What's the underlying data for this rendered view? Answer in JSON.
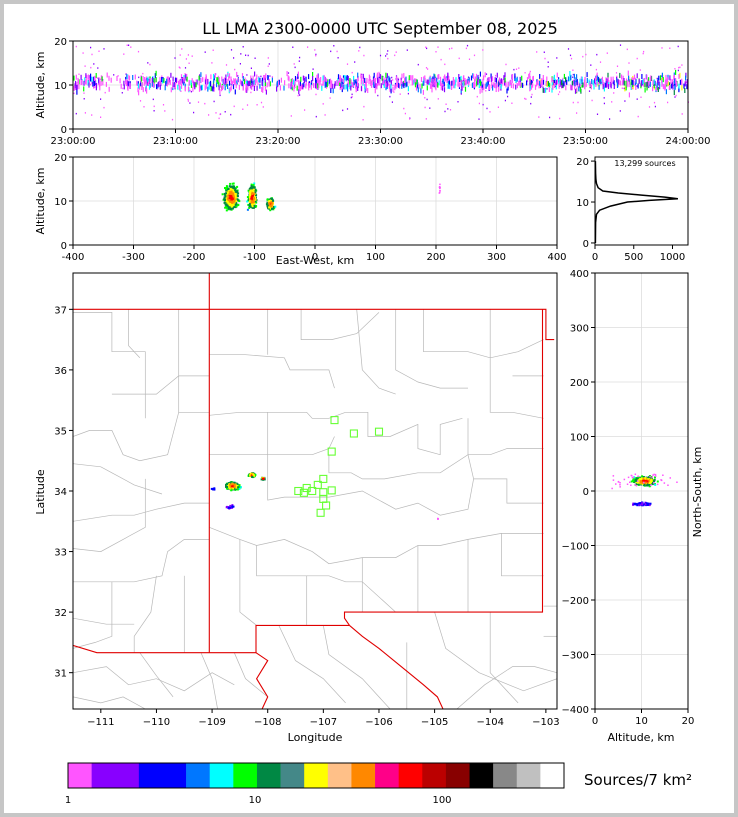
{
  "chart_data": [
    {
      "id": "time_altitude",
      "type": "scatter",
      "title": "LL LMA 2300-0000 UTC September 08, 2025",
      "ylabel": "Altitude, km",
      "xlabel": "",
      "ylim": [
        0,
        20
      ],
      "y_ticks": [
        "0",
        "10",
        "20"
      ],
      "x_ticks": [
        "23:00:00",
        "23:10:00",
        "23:20:00",
        "23:30:00",
        "23:40:00",
        "23:50:00",
        "24:00:00"
      ],
      "grid": true
    },
    {
      "id": "east_west_altitude",
      "type": "scatter",
      "xlabel": "East-West, km",
      "ylabel": "Altitude, km",
      "xlim": [
        -400,
        400
      ],
      "ylim": [
        0,
        20
      ],
      "x_ticks": [
        "-400",
        "-300",
        "-200",
        "-100",
        "0",
        "100",
        "200",
        "300",
        "400"
      ],
      "y_ticks": [
        "0",
        "10",
        "20"
      ],
      "grid": true,
      "clusters": [
        {
          "x": -140,
          "y": 11
        },
        {
          "x": -105,
          "y": 11
        },
        {
          "x": -75,
          "y": 9.5
        },
        {
          "x": 205,
          "y": 13
        }
      ]
    },
    {
      "id": "altitude_histogram",
      "type": "line",
      "annotation": "13,299 sources",
      "xlim": [
        0,
        1200
      ],
      "ylim": [
        0,
        21
      ],
      "x_ticks": [
        "0",
        "500",
        "1000"
      ],
      "y_ticks": [
        "0",
        "10",
        "20"
      ],
      "points": [
        [
          5,
          0
        ],
        [
          8,
          5
        ],
        [
          20,
          7
        ],
        [
          60,
          8
        ],
        [
          200,
          9
        ],
        [
          420,
          10
        ],
        [
          700,
          10.4
        ],
        [
          1070,
          10.8
        ],
        [
          900,
          11.2
        ],
        [
          600,
          11.7
        ],
        [
          300,
          12.2
        ],
        [
          100,
          12.7
        ],
        [
          40,
          13.5
        ],
        [
          20,
          14.5
        ],
        [
          12,
          15.5
        ],
        [
          8,
          17
        ],
        [
          5,
          20
        ]
      ]
    },
    {
      "id": "plan_view",
      "type": "scatter",
      "xlabel": "Longitude",
      "ylabel": "Latitude",
      "xlim": [
        -111.5,
        -102.8
      ],
      "ylim": [
        30.4,
        37.6
      ],
      "x_ticks": [
        "−111",
        "−110",
        "−109",
        "−108",
        "−107",
        "−106",
        "−105",
        "−104",
        "−103"
      ],
      "y_ticks": [
        "31",
        "32",
        "33",
        "34",
        "35",
        "36",
        "37"
      ],
      "stations": [
        {
          "lon": -106.8,
          "lat": 35.17
        },
        {
          "lon": -106.45,
          "lat": 34.95
        },
        {
          "lon": -106.0,
          "lat": 34.98
        },
        {
          "lon": -106.85,
          "lat": 34.65
        },
        {
          "lon": -107.0,
          "lat": 34.2
        },
        {
          "lon": -107.1,
          "lat": 34.1
        },
        {
          "lon": -107.2,
          "lat": 34.0
        },
        {
          "lon": -107.3,
          "lat": 34.05
        },
        {
          "lon": -107.35,
          "lat": 33.97
        },
        {
          "lon": -107.45,
          "lat": 34.0
        },
        {
          "lon": -107.0,
          "lat": 33.98
        },
        {
          "lon": -106.85,
          "lat": 34.01
        },
        {
          "lon": -107.0,
          "lat": 33.87
        },
        {
          "lon": -106.95,
          "lat": 33.76
        },
        {
          "lon": -107.05,
          "lat": 33.64
        }
      ]
    },
    {
      "id": "north_south_altitude",
      "type": "scatter",
      "xlabel": "Altitude, km",
      "ylabel": "North-South, km",
      "xlim": [
        0,
        20
      ],
      "ylim": [
        -400,
        400
      ],
      "x_ticks": [
        "0",
        "10",
        "20"
      ],
      "y_ticks": [
        "−400",
        "−300",
        "−200",
        "−100",
        "0",
        "100",
        "200",
        "300",
        "400"
      ],
      "grid": true
    },
    {
      "id": "colorbar",
      "type": "heatmap",
      "label": "Sources/7 km²",
      "tick_labels": [
        "1",
        "10",
        "100"
      ],
      "colors": [
        "#ff55ff",
        "#8800ff",
        "#8800ff",
        "#0000ff",
        "#0000ff",
        "#0077ff",
        "#00ffff",
        "#00ff00",
        "#008844",
        "#448888",
        "#ffff00",
        "#ffc088",
        "#ff8800",
        "#ff0088",
        "#ff0000",
        "#bb0000",
        "#880000",
        "#000000",
        "#888888",
        "#c0c0c0",
        "#ffffff"
      ]
    }
  ]
}
